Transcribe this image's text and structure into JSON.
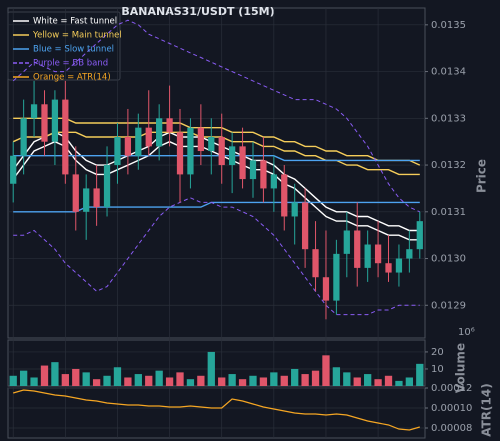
{
  "chart_data": [
    {
      "type": "candlestick",
      "title": "BANANAS31/USDT (15M)",
      "ylabel": "Price",
      "ylim": [
        0.01283,
        0.013536
      ],
      "yticks": [
        0.0129,
        {
          "value": 0.013,
          "label": "0.0130"
        },
        0.0131,
        0.0132,
        0.0133,
        0.0134,
        0.0135
      ],
      "grid": true,
      "legend": "upper left",
      "up_color": "#26a69a",
      "down_color": "#e0566a",
      "open": [
        0.01316,
        0.01322,
        0.0133,
        0.01333,
        0.01325,
        0.01334,
        0.01318,
        0.0131,
        0.01315,
        0.01311,
        0.0132,
        0.01326,
        0.01322,
        0.01328,
        0.01324,
        0.0133,
        0.01327,
        0.01318,
        0.01328,
        0.01323,
        0.01326,
        0.0132,
        0.01324,
        0.01317,
        0.01321,
        0.01315,
        0.01318,
        0.01309,
        0.01312,
        0.01302,
        0.01296,
        0.01291,
        0.01301,
        0.01306,
        0.01298,
        0.01303,
        0.01299,
        0.01297,
        0.013,
        0.01302
      ],
      "high": [
        0.01325,
        0.01334,
        0.01338,
        0.01336,
        0.01336,
        0.01338,
        0.01324,
        0.01318,
        0.0132,
        0.01324,
        0.01329,
        0.01332,
        0.01331,
        0.01336,
        0.01333,
        0.01337,
        0.01332,
        0.0133,
        0.01333,
        0.0133,
        0.01331,
        0.01327,
        0.01328,
        0.01325,
        0.01326,
        0.01322,
        0.0132,
        0.01316,
        0.01315,
        0.01308,
        0.01306,
        0.01304,
        0.0131,
        0.01312,
        0.01306,
        0.01308,
        0.01305,
        0.01303,
        0.01306,
        0.0131
      ],
      "low": [
        0.01312,
        0.01318,
        0.01326,
        0.01322,
        0.0132,
        0.01316,
        0.01306,
        0.01304,
        0.01307,
        0.01309,
        0.01316,
        0.01318,
        0.01319,
        0.01322,
        0.01321,
        0.01324,
        0.01312,
        0.01315,
        0.0132,
        0.01318,
        0.01316,
        0.01314,
        0.01315,
        0.01313,
        0.01312,
        0.0131,
        0.01306,
        0.01303,
        0.01298,
        0.01293,
        0.01287,
        0.01288,
        0.01296,
        0.01294,
        0.01295,
        0.01296,
        0.01295,
        0.01294,
        0.01297,
        0.013
      ],
      "close": [
        0.01322,
        0.0133,
        0.01333,
        0.01325,
        0.01334,
        0.01318,
        0.0131,
        0.01315,
        0.01311,
        0.0132,
        0.01326,
        0.01322,
        0.01328,
        0.01324,
        0.0133,
        0.01327,
        0.01318,
        0.01328,
        0.01323,
        0.01326,
        0.0132,
        0.01324,
        0.01317,
        0.01321,
        0.01315,
        0.01318,
        0.01309,
        0.01312,
        0.01302,
        0.01296,
        0.01291,
        0.01301,
        0.01306,
        0.01298,
        0.01303,
        0.01299,
        0.01297,
        0.013,
        0.01302,
        0.01308
      ],
      "series": [
        {
          "name": "White = Fast tunnel",
          "color": "#ffffff",
          "dashed": false,
          "upper": [
            0.01319,
            0.01322,
            0.01325,
            0.01326,
            0.01327,
            0.01326,
            0.01323,
            0.01321,
            0.0132,
            0.0132,
            0.01321,
            0.01322,
            0.01323,
            0.01324,
            0.01326,
            0.01327,
            0.01326,
            0.01326,
            0.01326,
            0.01325,
            0.01324,
            0.01323,
            0.01322,
            0.01321,
            0.01321,
            0.0132,
            0.01318,
            0.01317,
            0.01315,
            0.01313,
            0.01311,
            0.0131,
            0.0131,
            0.01309,
            0.01309,
            0.01308,
            0.01307,
            0.01307,
            0.01306,
            0.01306
          ],
          "lower": [
            0.01317,
            0.0132,
            0.01323,
            0.01324,
            0.01325,
            0.01324,
            0.01321,
            0.01319,
            0.01318,
            0.01318,
            0.01319,
            0.0132,
            0.01321,
            0.01322,
            0.01324,
            0.01325,
            0.01324,
            0.01324,
            0.01324,
            0.01323,
            0.01322,
            0.01321,
            0.0132,
            0.01319,
            0.01319,
            0.01318,
            0.01316,
            0.01315,
            0.01313,
            0.01311,
            0.01309,
            0.01308,
            0.01308,
            0.01307,
            0.01307,
            0.01306,
            0.01305,
            0.01305,
            0.01304,
            0.01304
          ]
        },
        {
          "name": "Yellow = Main tunnel",
          "color": "#f5cd5a",
          "dashed": false,
          "upper": [
            0.0133,
            0.0133,
            0.0133,
            0.0133,
            0.0133,
            0.0133,
            0.01329,
            0.01329,
            0.01329,
            0.01329,
            0.01329,
            0.01329,
            0.01329,
            0.01329,
            0.01329,
            0.01329,
            0.01329,
            0.01328,
            0.01328,
            0.01328,
            0.01328,
            0.01327,
            0.01327,
            0.01327,
            0.01326,
            0.01326,
            0.01325,
            0.01325,
            0.01324,
            0.01324,
            0.01323,
            0.01323,
            0.01322,
            0.01322,
            0.01322,
            0.01321,
            0.01321,
            0.01321,
            0.01321,
            0.0132
          ],
          "lower": [
            0.01325,
            0.01326,
            0.01326,
            0.01326,
            0.01327,
            0.01327,
            0.01327,
            0.01326,
            0.01326,
            0.01326,
            0.01326,
            0.01326,
            0.01326,
            0.01327,
            0.01327,
            0.01327,
            0.01327,
            0.01327,
            0.01326,
            0.01326,
            0.01326,
            0.01325,
            0.01325,
            0.01325,
            0.01324,
            0.01324,
            0.01323,
            0.01323,
            0.01322,
            0.01322,
            0.01321,
            0.01321,
            0.0132,
            0.0132,
            0.01319,
            0.01319,
            0.01319,
            0.01318,
            0.01318,
            0.01318
          ]
        },
        {
          "name": "Blue = Slow tunnel",
          "color": "#4da3f0",
          "dashed": false,
          "upper": [
            0.01322,
            0.01322,
            0.01322,
            0.01322,
            0.01322,
            0.01322,
            0.01322,
            0.01322,
            0.01322,
            0.01322,
            0.01322,
            0.01322,
            0.01322,
            0.01322,
            0.01322,
            0.01322,
            0.01322,
            0.01322,
            0.01322,
            0.01322,
            0.01322,
            0.01322,
            0.01322,
            0.01322,
            0.01322,
            0.01322,
            0.01321,
            0.01321,
            0.01321,
            0.01321,
            0.01321,
            0.01321,
            0.01321,
            0.01321,
            0.01321,
            0.01321,
            0.01321,
            0.01321,
            0.01321,
            0.01321
          ],
          "lower": [
            0.0131,
            0.0131,
            0.0131,
            0.0131,
            0.0131,
            0.0131,
            0.0131,
            0.01311,
            0.01311,
            0.01311,
            0.01311,
            0.01311,
            0.01311,
            0.01311,
            0.01311,
            0.01311,
            0.01311,
            0.01311,
            0.01311,
            0.01312,
            0.01312,
            0.01312,
            0.01312,
            0.01312,
            0.01312,
            0.01312,
            0.01312,
            0.01312,
            0.01312,
            0.01312,
            0.01312,
            0.01312,
            0.01312,
            0.01312,
            0.01312,
            0.01312,
            0.01312,
            0.01312,
            0.01312,
            0.01312
          ]
        },
        {
          "name": "Purple = BB band",
          "color": "#8a5cf5",
          "dashed": true,
          "upper": [
            0.01338,
            0.0134,
            0.01342,
            0.01341,
            0.0134,
            0.0134,
            0.01342,
            0.01344,
            0.01346,
            0.01348,
            0.0135,
            0.01351,
            0.0135,
            0.01348,
            0.01347,
            0.01346,
            0.01345,
            0.01344,
            0.01343,
            0.01342,
            0.01341,
            0.0134,
            0.01339,
            0.01338,
            0.01337,
            0.01336,
            0.01335,
            0.01334,
            0.01334,
            0.01334,
            0.01333,
            0.01332,
            0.0133,
            0.01327,
            0.01324,
            0.0132,
            0.01316,
            0.01313,
            0.01311,
            0.0131
          ],
          "lower": [
            0.01305,
            0.01305,
            0.01306,
            0.01304,
            0.01302,
            0.01299,
            0.01297,
            0.01295,
            0.01293,
            0.01294,
            0.01297,
            0.013,
            0.01303,
            0.01306,
            0.01309,
            0.01311,
            0.01312,
            0.01313,
            0.01312,
            0.01312,
            0.01311,
            0.01311,
            0.0131,
            0.01309,
            0.01307,
            0.01305,
            0.01302,
            0.01299,
            0.01296,
            0.01293,
            0.0129,
            0.01288,
            0.01288,
            0.01288,
            0.01288,
            0.01289,
            0.01289,
            0.0129,
            0.0129,
            0.0129
          ]
        }
      ]
    },
    {
      "type": "volume",
      "ylabel": "Volume",
      "scale_label": "10⁶",
      "ylim": [
        0,
        27
      ],
      "yticks": [
        10,
        20
      ],
      "grid": true,
      "up_color": "#26a69a",
      "down_color": "#e0566a",
      "values": [
        6,
        9,
        5,
        12,
        14,
        7,
        10,
        8,
        4,
        6,
        11,
        5,
        7,
        6,
        9,
        5,
        8,
        4,
        6,
        20,
        5,
        7,
        4,
        6,
        5,
        8,
        6,
        10,
        7,
        9,
        18,
        11,
        8,
        5,
        7,
        4,
        6,
        3,
        5,
        13
      ]
    },
    {
      "type": "line",
      "ylabel": "ATR(14)",
      "ylim": [
        7e-05,
        0.00012
      ],
      "yticks": [
        {
          "value": 8e-05,
          "label": "0.00008"
        },
        {
          "value": 0.0001,
          "label": "0.00010"
        },
        {
          "value": 0.00012,
          "label": "0.00012"
        }
      ],
      "grid": true,
      "series": [
        {
          "name": "Orange = ATR(14)",
          "color": "#f5a623",
          "values": [
            0.000115,
            0.000118,
            0.000117,
            0.000115,
            0.000113,
            0.000112,
            0.00011,
            0.000108,
            0.000107,
            0.000105,
            0.000104,
            0.000103,
            0.000103,
            0.000102,
            0.000102,
            0.000101,
            0.000101,
            0.000102,
            0.000101,
            0.0001,
            0.0001,
            0.000109,
            0.000107,
            0.000104,
            0.000101,
            9.9e-05,
            9.7e-05,
            9.5e-05,
            9.4e-05,
            9.4e-05,
            9.3e-05,
            9.4e-05,
            9.3e-05,
            9e-05,
            8.7e-05,
            8.5e-05,
            8.3e-05,
            7.9e-05,
            7.8e-05,
            8.1e-05
          ]
        }
      ]
    }
  ]
}
